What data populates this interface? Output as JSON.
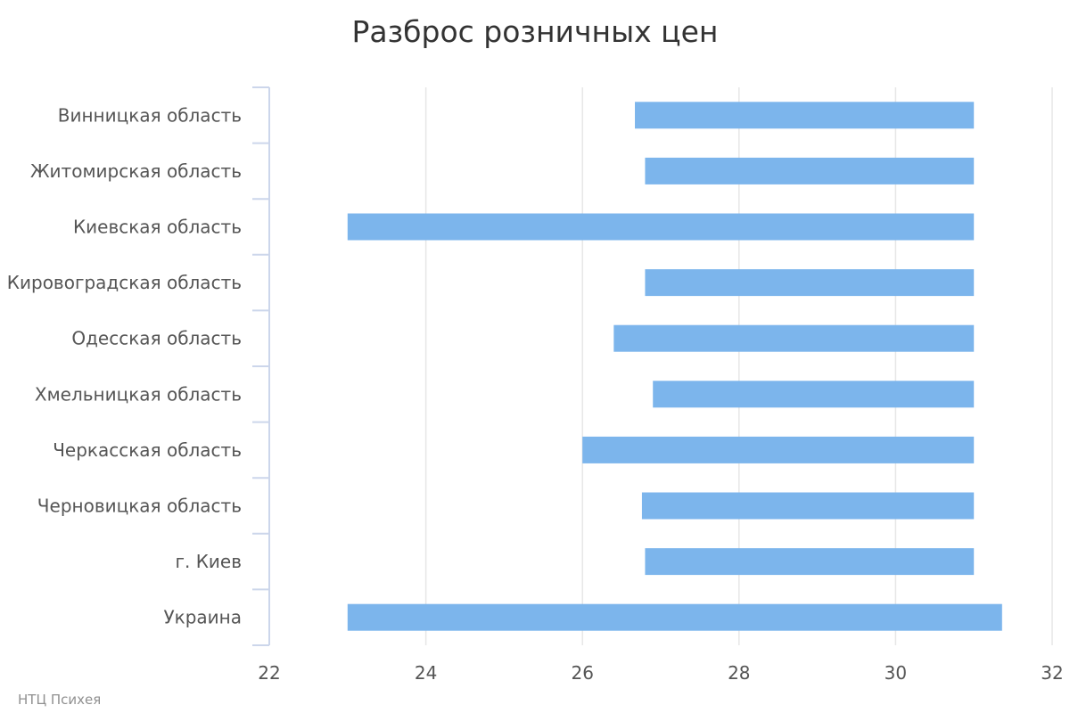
{
  "chart_data": {
    "type": "bar",
    "orientation": "horizontal",
    "subtype": "range",
    "title": "Разброс розничных цен",
    "categories": [
      "Винницкая область",
      "Житомирская область",
      "Киевская область",
      "Кировоградская область",
      "Одесская область",
      "Хмельницкая область",
      "Черкасская область",
      "Черновицкая область",
      "г. Киев",
      "Украина"
    ],
    "series": [
      {
        "low": [
          26.67,
          26.8,
          23.0,
          26.8,
          26.4,
          26.9,
          26.0,
          26.76,
          26.8,
          23.0
        ],
        "high": [
          31.0,
          31.0,
          31.0,
          31.0,
          31.0,
          31.0,
          31.0,
          31.0,
          31.0,
          31.36
        ]
      }
    ],
    "xlim": [
      22,
      32
    ],
    "xticks": [
      22,
      24,
      26,
      28,
      30,
      32
    ],
    "grid": true,
    "legend": "none",
    "colors": {
      "bar": "#7cb5ec",
      "grid": "#e6e6e6",
      "axis": "#ccd6eb"
    }
  },
  "credits": "НТЦ Психея"
}
